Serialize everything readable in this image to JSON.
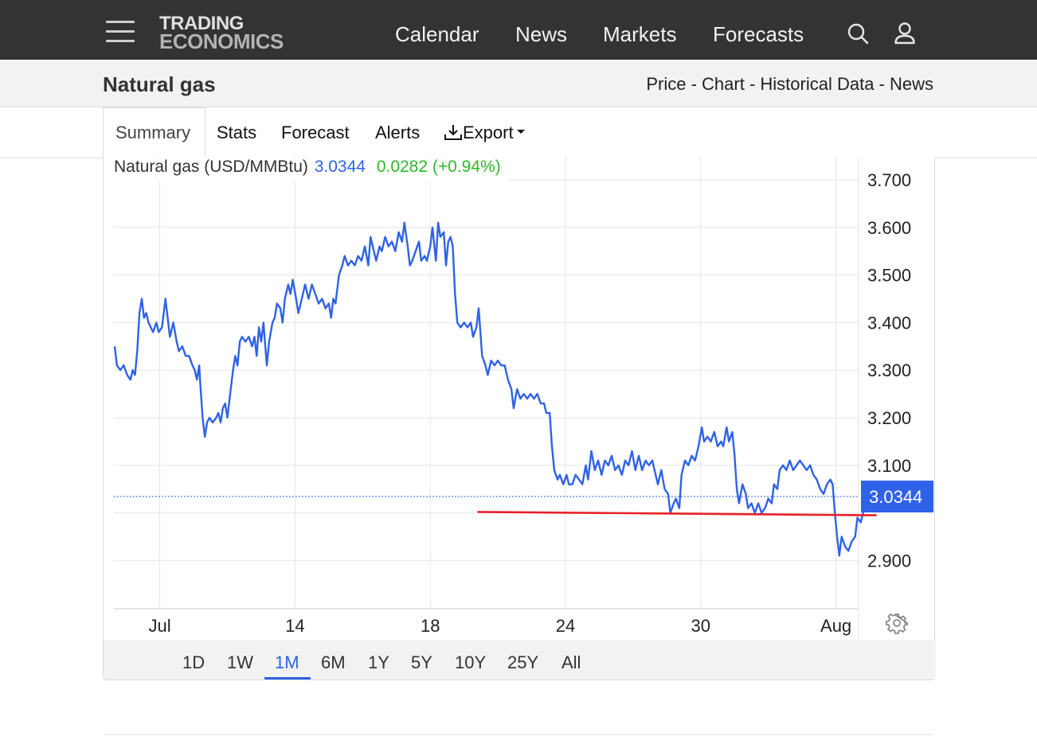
{
  "header": {
    "logo_line1": "TRADING",
    "logo_line2": "ECONOMICS",
    "nav": [
      "Calendar",
      "News",
      "Markets",
      "Forecasts"
    ]
  },
  "subheader": {
    "title": "Natural gas",
    "breadcrumbs": "Price - Chart - Historical Data - News"
  },
  "tabs": [
    "Summary",
    "Stats",
    "Forecast",
    "Alerts",
    "Export"
  ],
  "legend": {
    "name": "Natural gas (USD/MMBtu)",
    "price": "3.0344",
    "change": "0.0282 (+0.94%)"
  },
  "ranges": [
    "1D",
    "1W",
    "1M",
    "6M",
    "1Y",
    "5Y",
    "10Y",
    "25Y",
    "All"
  ],
  "active_range": "1M",
  "colors": {
    "line": "#2f62e8",
    "trendline": "#e8202a",
    "change_positive": "#2bb92b",
    "price_tag_bg": "#2f62e8",
    "topbar": "#333333"
  },
  "chart_data": {
    "type": "line",
    "title": "",
    "xlabel": "",
    "ylabel": "",
    "x_ticks": [
      {
        "label": "Jul",
        "t": 2
      },
      {
        "label": "14",
        "t": 8
      },
      {
        "label": "18",
        "t": 14
      },
      {
        "label": "24",
        "t": 20
      },
      {
        "label": "30",
        "t": 26
      },
      {
        "label": "Aug",
        "t": 32
      }
    ],
    "y_ticks": [
      {
        "label": "2.900",
        "v": 2.9
      },
      {
        "label": "",
        "v": 3.0
      },
      {
        "label": "3.100",
        "v": 3.1
      },
      {
        "label": "3.200",
        "v": 3.2
      },
      {
        "label": "3.300",
        "v": 3.3
      },
      {
        "label": "3.400",
        "v": 3.4
      },
      {
        "label": "3.500",
        "v": 3.5
      },
      {
        "label": "3.600",
        "v": 3.6
      },
      {
        "label": "3.700",
        "v": 3.7
      }
    ],
    "ylim": [
      2.8,
      3.735
    ],
    "xlim": [
      0,
      33
    ],
    "grid": true,
    "last_value": "3.0344",
    "series": [
      {
        "color": "#2f62e8",
        "points": [
          [
            0.0,
            3.35
          ],
          [
            0.1,
            3.31
          ],
          [
            0.25,
            3.3
          ],
          [
            0.4,
            3.31
          ],
          [
            0.55,
            3.29
          ],
          [
            0.7,
            3.28
          ],
          [
            0.8,
            3.3
          ],
          [
            0.9,
            3.29
          ],
          [
            1.0,
            3.34
          ],
          [
            1.1,
            3.42
          ],
          [
            1.2,
            3.45
          ],
          [
            1.3,
            3.41
          ],
          [
            1.4,
            3.42
          ],
          [
            1.5,
            3.4
          ],
          [
            1.6,
            3.39
          ],
          [
            1.7,
            3.38
          ],
          [
            1.85,
            3.4
          ],
          [
            1.95,
            3.38
          ],
          [
            2.1,
            3.39
          ],
          [
            2.25,
            3.45
          ],
          [
            2.35,
            3.41
          ],
          [
            2.45,
            3.37
          ],
          [
            2.6,
            3.4
          ],
          [
            2.75,
            3.36
          ],
          [
            2.85,
            3.34
          ],
          [
            3.0,
            3.35
          ],
          [
            3.15,
            3.33
          ],
          [
            3.3,
            3.33
          ],
          [
            3.45,
            3.31
          ],
          [
            3.55,
            3.3
          ],
          [
            3.65,
            3.28
          ],
          [
            3.75,
            3.31
          ],
          [
            3.8,
            3.27
          ],
          [
            3.9,
            3.2
          ],
          [
            4.0,
            3.16
          ],
          [
            4.1,
            3.19
          ],
          [
            4.2,
            3.2
          ],
          [
            4.35,
            3.19
          ],
          [
            4.5,
            3.2
          ],
          [
            4.6,
            3.21
          ],
          [
            4.7,
            3.19
          ],
          [
            4.8,
            3.22
          ],
          [
            4.9,
            3.23
          ],
          [
            5.0,
            3.2
          ],
          [
            5.15,
            3.26
          ],
          [
            5.25,
            3.3
          ],
          [
            5.35,
            3.33
          ],
          [
            5.45,
            3.31
          ],
          [
            5.55,
            3.36
          ],
          [
            5.65,
            3.37
          ],
          [
            5.8,
            3.36
          ],
          [
            5.95,
            3.37
          ],
          [
            6.1,
            3.35
          ],
          [
            6.2,
            3.37
          ],
          [
            6.3,
            3.33
          ],
          [
            6.4,
            3.39
          ],
          [
            6.5,
            3.36
          ],
          [
            6.6,
            3.4
          ],
          [
            6.75,
            3.31
          ],
          [
            6.85,
            3.36
          ],
          [
            7.0,
            3.4
          ],
          [
            7.1,
            3.41
          ],
          [
            7.2,
            3.44
          ],
          [
            7.35,
            3.43
          ],
          [
            7.45,
            3.4
          ],
          [
            7.55,
            3.45
          ],
          [
            7.7,
            3.48
          ],
          [
            7.8,
            3.46
          ],
          [
            7.9,
            3.49
          ],
          [
            8.05,
            3.45
          ],
          [
            8.15,
            3.42
          ],
          [
            8.3,
            3.45
          ],
          [
            8.45,
            3.48
          ],
          [
            8.6,
            3.45
          ],
          [
            8.75,
            3.48
          ],
          [
            8.9,
            3.46
          ],
          [
            9.05,
            3.44
          ],
          [
            9.2,
            3.45
          ],
          [
            9.35,
            3.43
          ],
          [
            9.5,
            3.44
          ],
          [
            9.6,
            3.41
          ],
          [
            9.7,
            3.45
          ],
          [
            9.8,
            3.44
          ],
          [
            9.95,
            3.5
          ],
          [
            10.1,
            3.52
          ],
          [
            10.2,
            3.54
          ],
          [
            10.35,
            3.52
          ],
          [
            10.5,
            3.53
          ],
          [
            10.65,
            3.52
          ],
          [
            10.8,
            3.54
          ],
          [
            10.95,
            3.53
          ],
          [
            11.1,
            3.56
          ],
          [
            11.25,
            3.52
          ],
          [
            11.35,
            3.58
          ],
          [
            11.5,
            3.55
          ],
          [
            11.6,
            3.53
          ],
          [
            11.75,
            3.56
          ],
          [
            11.85,
            3.55
          ],
          [
            12.0,
            3.58
          ],
          [
            12.15,
            3.56
          ],
          [
            12.3,
            3.57
          ],
          [
            12.45,
            3.55
          ],
          [
            12.6,
            3.59
          ],
          [
            12.75,
            3.57
          ],
          [
            12.85,
            3.61
          ],
          [
            13.0,
            3.56
          ],
          [
            13.1,
            3.52
          ],
          [
            13.2,
            3.53
          ],
          [
            13.35,
            3.55
          ],
          [
            13.5,
            3.57
          ],
          [
            13.6,
            3.53
          ],
          [
            13.75,
            3.54
          ],
          [
            13.85,
            3.53
          ],
          [
            14.0,
            3.56
          ],
          [
            14.1,
            3.6
          ],
          [
            14.25,
            3.53
          ],
          [
            14.35,
            3.61
          ],
          [
            14.45,
            3.58
          ],
          [
            14.6,
            3.59
          ],
          [
            14.7,
            3.52
          ],
          [
            14.8,
            3.57
          ],
          [
            14.9,
            3.58
          ],
          [
            15.0,
            3.56
          ],
          [
            15.1,
            3.46
          ],
          [
            15.2,
            3.4
          ],
          [
            15.35,
            3.39
          ],
          [
            15.5,
            3.4
          ],
          [
            15.65,
            3.39
          ],
          [
            15.8,
            3.4
          ],
          [
            15.9,
            3.37
          ],
          [
            16.05,
            3.39
          ],
          [
            16.15,
            3.43
          ],
          [
            16.3,
            3.33
          ],
          [
            16.45,
            3.31
          ],
          [
            16.55,
            3.29
          ],
          [
            16.7,
            3.32
          ],
          [
            16.85,
            3.31
          ],
          [
            17.0,
            3.32
          ],
          [
            17.15,
            3.31
          ],
          [
            17.3,
            3.31
          ],
          [
            17.45,
            3.28
          ],
          [
            17.6,
            3.26
          ],
          [
            17.7,
            3.22
          ],
          [
            17.85,
            3.26
          ],
          [
            18.0,
            3.24
          ],
          [
            18.15,
            3.25
          ],
          [
            18.3,
            3.24
          ],
          [
            18.45,
            3.25
          ],
          [
            18.6,
            3.24
          ],
          [
            18.75,
            3.25
          ],
          [
            18.9,
            3.23
          ],
          [
            19.05,
            3.23
          ],
          [
            19.15,
            3.21
          ],
          [
            19.3,
            3.21
          ],
          [
            19.4,
            3.14
          ],
          [
            19.5,
            3.09
          ],
          [
            19.65,
            3.07
          ],
          [
            19.75,
            3.08
          ],
          [
            19.9,
            3.06
          ],
          [
            20.05,
            3.08
          ],
          [
            20.15,
            3.06
          ],
          [
            20.3,
            3.06
          ],
          [
            20.45,
            3.08
          ],
          [
            20.6,
            3.07
          ],
          [
            20.75,
            3.06
          ],
          [
            20.9,
            3.1
          ],
          [
            21.0,
            3.07
          ],
          [
            21.15,
            3.13
          ],
          [
            21.3,
            3.09
          ],
          [
            21.45,
            3.11
          ],
          [
            21.6,
            3.08
          ],
          [
            21.75,
            3.11
          ],
          [
            21.9,
            3.1
          ],
          [
            22.05,
            3.12
          ],
          [
            22.2,
            3.09
          ],
          [
            22.35,
            3.1
          ],
          [
            22.5,
            3.08
          ],
          [
            22.65,
            3.11
          ],
          [
            22.8,
            3.1
          ],
          [
            22.95,
            3.13
          ],
          [
            23.1,
            3.09
          ],
          [
            23.25,
            3.12
          ],
          [
            23.4,
            3.09
          ],
          [
            23.55,
            3.11
          ],
          [
            23.7,
            3.1
          ],
          [
            23.85,
            3.11
          ],
          [
            24.0,
            3.08
          ],
          [
            24.1,
            3.06
          ],
          [
            24.25,
            3.09
          ],
          [
            24.4,
            3.05
          ],
          [
            24.55,
            3.04
          ],
          [
            24.65,
            3.0
          ],
          [
            24.8,
            3.02
          ],
          [
            24.9,
            3.03
          ],
          [
            25.05,
            3.01
          ],
          [
            25.15,
            3.08
          ],
          [
            25.3,
            3.11
          ],
          [
            25.45,
            3.1
          ],
          [
            25.6,
            3.12
          ],
          [
            25.75,
            3.11
          ],
          [
            25.9,
            3.14
          ],
          [
            26.05,
            3.18
          ],
          [
            26.15,
            3.15
          ],
          [
            26.3,
            3.16
          ],
          [
            26.45,
            3.15
          ],
          [
            26.6,
            3.17
          ],
          [
            26.75,
            3.14
          ],
          [
            26.9,
            3.15
          ],
          [
            27.0,
            3.14
          ],
          [
            27.15,
            3.18
          ],
          [
            27.25,
            3.15
          ],
          [
            27.4,
            3.17
          ],
          [
            27.5,
            3.12
          ],
          [
            27.6,
            3.05
          ],
          [
            27.7,
            3.02
          ],
          [
            27.85,
            3.06
          ],
          [
            28.0,
            3.04
          ],
          [
            28.1,
            3.01
          ],
          [
            28.25,
            3.02
          ],
          [
            28.4,
            3.0
          ],
          [
            28.55,
            3.02
          ],
          [
            28.7,
            3.0
          ],
          [
            28.85,
            3.01
          ],
          [
            29.0,
            3.03
          ],
          [
            29.15,
            3.02
          ],
          [
            29.25,
            3.06
          ],
          [
            29.4,
            3.05
          ],
          [
            29.5,
            3.09
          ],
          [
            29.65,
            3.1
          ],
          [
            29.8,
            3.09
          ],
          [
            29.95,
            3.11
          ],
          [
            30.1,
            3.09
          ],
          [
            30.25,
            3.1
          ],
          [
            30.4,
            3.11
          ],
          [
            30.55,
            3.1
          ],
          [
            30.7,
            3.09
          ],
          [
            30.85,
            3.1
          ],
          [
            31.0,
            3.08
          ],
          [
            31.15,
            3.07
          ],
          [
            31.3,
            3.05
          ],
          [
            31.45,
            3.04
          ],
          [
            31.6,
            3.06
          ],
          [
            31.75,
            3.07
          ],
          [
            31.85,
            3.06
          ],
          [
            31.95,
            3.0
          ],
          [
            32.05,
            2.95
          ],
          [
            32.15,
            2.91
          ],
          [
            32.25,
            2.95
          ],
          [
            32.4,
            2.93
          ],
          [
            32.55,
            2.92
          ],
          [
            32.7,
            2.94
          ],
          [
            32.85,
            2.95
          ],
          [
            32.95,
            2.99
          ],
          [
            33.1,
            2.98
          ],
          [
            33.2,
            3.0
          ],
          [
            33.3,
            3.01
          ],
          [
            33.4,
            3.02
          ],
          [
            33.5,
            3.034
          ]
        ]
      },
      {
        "color": "#e8202a",
        "points": [
          [
            16.1,
            3.002
          ],
          [
            33.8,
            2.995
          ]
        ]
      }
    ]
  }
}
